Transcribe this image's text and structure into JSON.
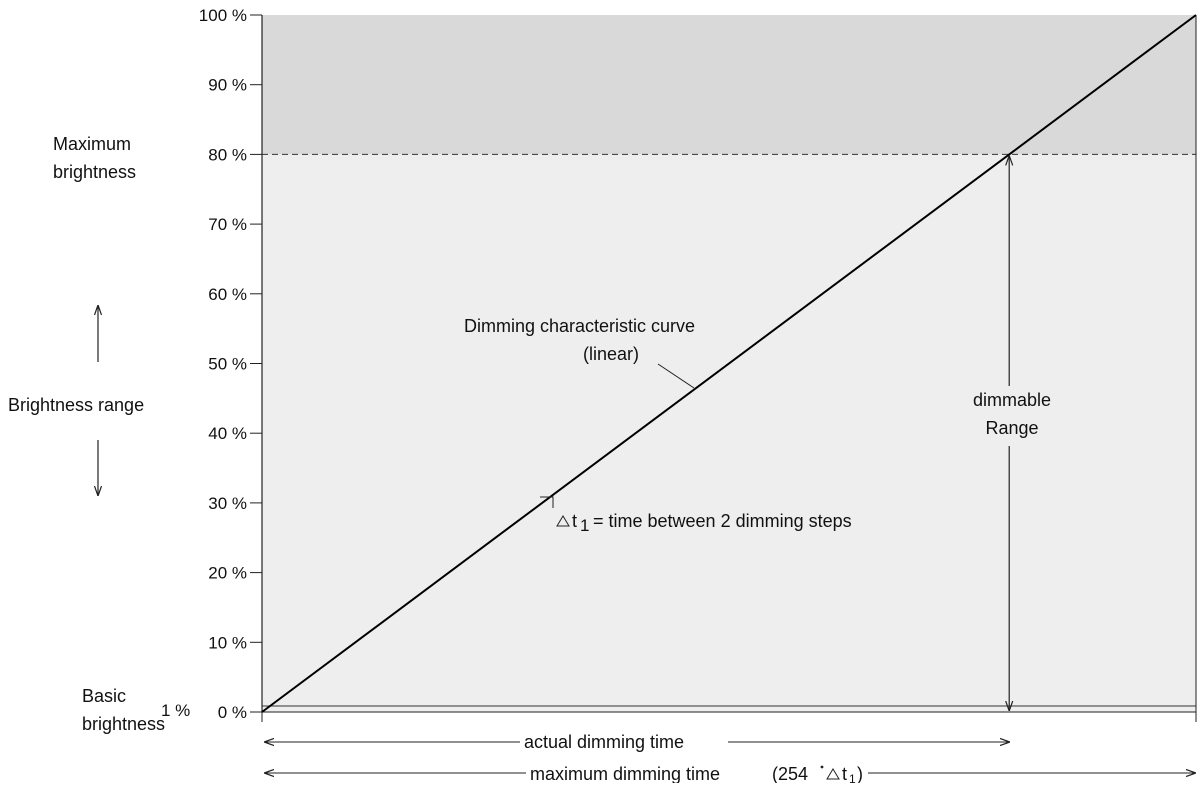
{
  "colors": {
    "upper_band": "#d9d9d9",
    "lower_band": "#eeeeee",
    "line": "#000000",
    "axis": "#222222"
  },
  "chart_data": {
    "type": "line",
    "ylim": [
      0,
      100
    ],
    "y_ticks": [
      {
        "value": 100,
        "label": "100 %"
      },
      {
        "value": 90,
        "label": "90 %"
      },
      {
        "value": 80,
        "label": "80 %"
      },
      {
        "value": 70,
        "label": "70 %"
      },
      {
        "value": 60,
        "label": "60 %"
      },
      {
        "value": 50,
        "label": "50 %"
      },
      {
        "value": 40,
        "label": "40 %"
      },
      {
        "value": 30,
        "label": "30 %"
      },
      {
        "value": 20,
        "label": "20 %"
      },
      {
        "value": 10,
        "label": "10 %"
      },
      {
        "value": 0,
        "label": "0 %"
      }
    ],
    "series": [
      {
        "points": [
          {
            "x": 0,
            "y": 0
          },
          {
            "x": 1,
            "y": 100
          }
        ]
      }
    ],
    "max_brightness_value": 80,
    "basic_brightness_value": 1,
    "side_labels": {
      "maximum_brightness_line1": "Maximum",
      "maximum_brightness_line2": "brightness",
      "brightness_range": "Brightness range",
      "basic_brightness_line1": "Basic",
      "basic_brightness_line2": "brightness",
      "basic_value": "1 %"
    },
    "annotations": {
      "curve_line1": "Dimming characteristic curve",
      "curve_line2": "(linear)",
      "step_symbol": "t",
      "step_subscript": "1",
      "step_text": "= time between 2 dimming steps",
      "dimmable_line1": "dimmable",
      "dimmable_line2": "Range"
    },
    "x_dimensions": {
      "actual": "actual dimming time",
      "maximum_prefix": "maximum dimming time",
      "maximum_formula_num": "(254",
      "maximum_formula_t": "t",
      "maximum_formula_sub": "1",
      "maximum_formula_close": ")"
    }
  }
}
